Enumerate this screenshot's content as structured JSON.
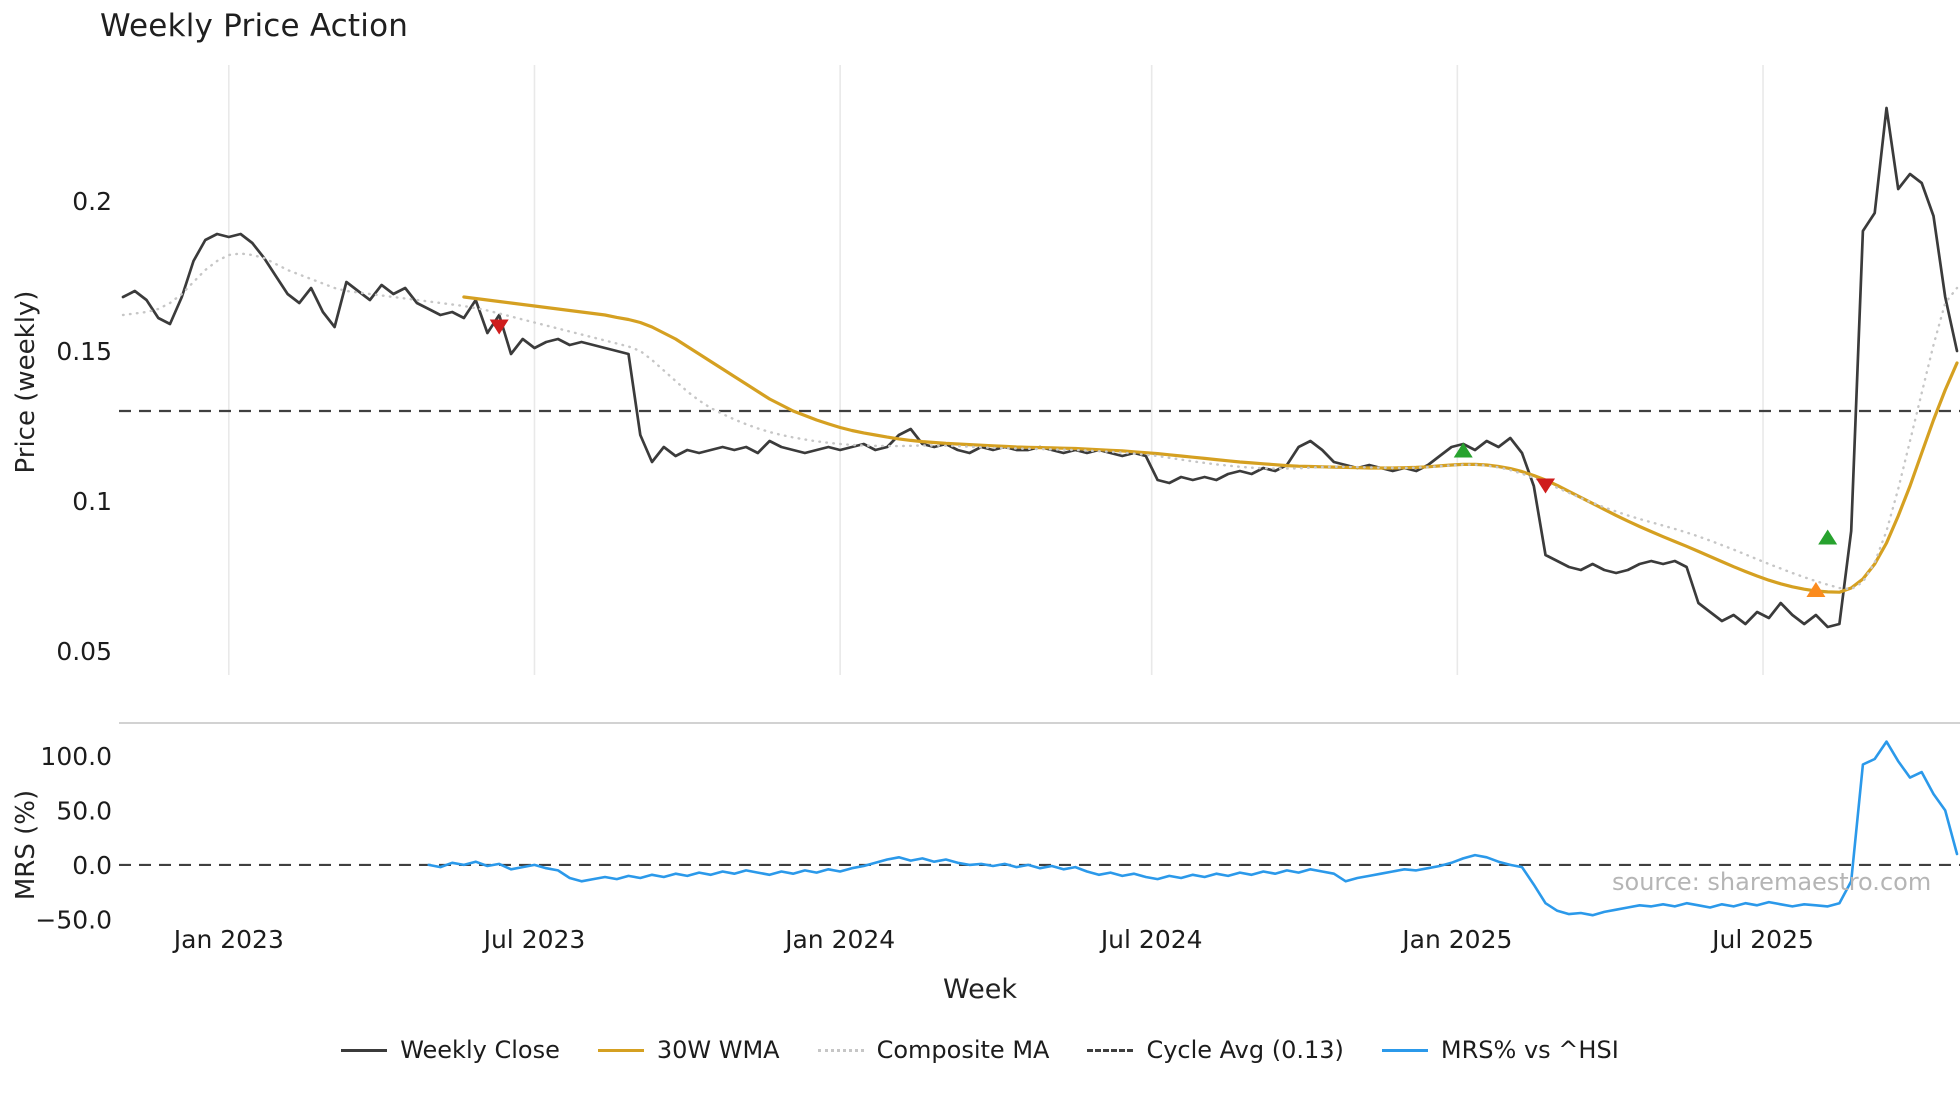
{
  "title": "Weekly Price Action",
  "source_note": "source: sharemaestro.com",
  "axes": {
    "price_label": "Price (weekly)",
    "mrs_label": "MRS (%)",
    "x_label": "Week"
  },
  "colors": {
    "weekly_close": "#3b3b3b",
    "wma": "#d5a021",
    "composite": "#c6c6c6",
    "cycle_avg": "#3f3f3f",
    "mrs": "#2b99ea",
    "grid": "#e9e9e9",
    "panel_border": "#cccccc",
    "sell_marker": "#cf1d1d",
    "buy_marker": "#27a22e",
    "cycle_low_marker": "#fb8b1e"
  },
  "legend": [
    {
      "label": "Weekly Close",
      "color": "#3b3b3b",
      "style": "solid"
    },
    {
      "label": "30W WMA",
      "color": "#d5a021",
      "style": "solid"
    },
    {
      "label": "Composite MA",
      "color": "#c6c6c6",
      "style": "dotted"
    },
    {
      "label": "Cycle Avg (0.13)",
      "color": "#3f3f3f",
      "style": "dashed"
    },
    {
      "label": "MRS% vs ^HSI",
      "color": "#2b99ea",
      "style": "solid"
    }
  ],
  "chart_data": {
    "type": "line",
    "title": "Weekly Price Action",
    "xlabel": "Week",
    "x_unit": "weekly index from late Nov 2022",
    "x_ticks": [
      {
        "index": 9,
        "label": "Jan 2023"
      },
      {
        "index": 35,
        "label": "Jul 2023"
      },
      {
        "index": 61,
        "label": "Jan 2024"
      },
      {
        "index": 87.5,
        "label": "Jul 2024"
      },
      {
        "index": 113.5,
        "label": "Jan 2025"
      },
      {
        "index": 139.5,
        "label": "Jul 2025"
      }
    ],
    "panels": [
      {
        "name": "price",
        "ylabel": "Price (weekly)",
        "ylim": [
          0.042,
          0.24
        ],
        "grid": "vertical",
        "yticks": [
          {
            "value": 0.2,
            "label": "0.2"
          },
          {
            "value": 0.15,
            "label": "0.15"
          },
          {
            "value": 0.1,
            "label": "0.1"
          },
          {
            "value": 0.05,
            "label": "0.05"
          }
        ],
        "hline": {
          "value": 0.13,
          "label": "Cycle Avg (0.13)",
          "style": "dashed"
        }
      },
      {
        "name": "mrs",
        "ylabel": "MRS (%)",
        "ylim": [
          -55,
          130
        ],
        "grid": "none",
        "yticks": [
          {
            "value": 100,
            "label": "100.0"
          },
          {
            "value": 50,
            "label": "50.0"
          },
          {
            "value": 0,
            "label": "0.0"
          },
          {
            "value": -50,
            "label": "−50.0"
          }
        ],
        "hline": {
          "value": 0,
          "label": "zero line",
          "style": "dashed"
        }
      }
    ],
    "series": [
      {
        "name": "Weekly Close",
        "panel": "price",
        "color": "#3b3b3b",
        "width": 2.7,
        "dash": null,
        "start_index": 0,
        "values": [
          0.168,
          0.17,
          0.167,
          0.161,
          0.159,
          0.168,
          0.18,
          0.187,
          0.189,
          0.188,
          0.189,
          0.186,
          0.181,
          0.175,
          0.169,
          0.166,
          0.171,
          0.163,
          0.158,
          0.173,
          0.17,
          0.167,
          0.172,
          0.169,
          0.171,
          0.166,
          0.164,
          0.162,
          0.163,
          0.161,
          0.167,
          0.156,
          0.162,
          0.149,
          0.154,
          0.151,
          0.153,
          0.154,
          0.152,
          0.153,
          0.152,
          0.151,
          0.15,
          0.149,
          0.122,
          0.113,
          0.118,
          0.115,
          0.117,
          0.116,
          0.117,
          0.118,
          0.117,
          0.118,
          0.116,
          0.12,
          0.118,
          0.117,
          0.116,
          0.117,
          0.118,
          0.117,
          0.118,
          0.119,
          0.117,
          0.118,
          0.122,
          0.124,
          0.119,
          0.118,
          0.119,
          0.117,
          0.116,
          0.118,
          0.117,
          0.118,
          0.117,
          0.117,
          0.118,
          0.117,
          0.116,
          0.117,
          0.116,
          0.117,
          0.116,
          0.115,
          0.116,
          0.115,
          0.107,
          0.106,
          0.108,
          0.107,
          0.108,
          0.107,
          0.109,
          0.11,
          0.109,
          0.111,
          0.11,
          0.112,
          0.118,
          0.12,
          0.117,
          0.113,
          0.112,
          0.111,
          0.112,
          0.111,
          0.11,
          0.111,
          0.11,
          0.112,
          0.115,
          0.118,
          0.119,
          0.117,
          0.12,
          0.118,
          0.121,
          0.116,
          0.105,
          0.082,
          0.08,
          0.078,
          0.077,
          0.079,
          0.077,
          0.076,
          0.077,
          0.079,
          0.08,
          0.079,
          0.08,
          0.078,
          0.066,
          0.063,
          0.06,
          0.062,
          0.059,
          0.063,
          0.061,
          0.066,
          0.062,
          0.059,
          0.062,
          0.058,
          0.059,
          0.09,
          0.19,
          0.196,
          0.231,
          0.204,
          0.209,
          0.206,
          0.195,
          0.168,
          0.15
        ]
      },
      {
        "name": "30W WMA",
        "panel": "price",
        "color": "#d5a021",
        "width": 3.2,
        "dash": null,
        "start_index": 29,
        "values": [
          0.168,
          0.1675,
          0.167,
          0.1665,
          0.166,
          0.1655,
          0.165,
          0.1645,
          0.164,
          0.1635,
          0.163,
          0.1625,
          0.162,
          0.1612,
          0.1605,
          0.1595,
          0.158,
          0.156,
          0.154,
          0.1515,
          0.149,
          0.1465,
          0.144,
          0.1415,
          0.139,
          0.1365,
          0.134,
          0.132,
          0.13,
          0.1285,
          0.127,
          0.1257,
          0.1245,
          0.1235,
          0.1227,
          0.122,
          0.1213,
          0.1207,
          0.1202,
          0.1198,
          0.1195,
          0.1192,
          0.119,
          0.1188,
          0.1186,
          0.1184,
          0.1182,
          0.118,
          0.1179,
          0.1178,
          0.1177,
          0.1176,
          0.1175,
          0.1173,
          0.1171,
          0.1169,
          0.1167,
          0.1164,
          0.1161,
          0.1158,
          0.1154,
          0.115,
          0.1146,
          0.1142,
          0.1138,
          0.1134,
          0.113,
          0.1127,
          0.1124,
          0.1121,
          0.1118,
          0.1116,
          0.1115,
          0.1114,
          0.1113,
          0.1112,
          0.1111,
          0.111,
          0.111,
          0.111,
          0.1111,
          0.1112,
          0.1114,
          0.1117,
          0.112,
          0.1122,
          0.1122,
          0.112,
          0.1115,
          0.1108,
          0.1098,
          0.1085,
          0.107,
          0.1052,
          0.1032,
          0.1012,
          0.0992,
          0.0972,
          0.0952,
          0.0933,
          0.0915,
          0.0898,
          0.0881,
          0.0865,
          0.0849,
          0.0832,
          0.0815,
          0.0798,
          0.0781,
          0.0765,
          0.075,
          0.0736,
          0.0724,
          0.0714,
          0.0706,
          0.07,
          0.0697,
          0.0696,
          0.071,
          0.074,
          0.079,
          0.086,
          0.095,
          0.105,
          0.116,
          0.127,
          0.137,
          0.146
        ]
      },
      {
        "name": "Composite MA",
        "panel": "price",
        "color": "#c6c6c6",
        "width": 2.4,
        "dash": "0.6 6.4",
        "start_index": 0,
        "values": [
          0.162,
          0.1625,
          0.163,
          0.164,
          0.166,
          0.169,
          0.173,
          0.177,
          0.18,
          0.182,
          0.1825,
          0.182,
          0.181,
          0.179,
          0.177,
          0.1755,
          0.174,
          0.1725,
          0.171,
          0.17,
          0.1695,
          0.169,
          0.1685,
          0.168,
          0.1675,
          0.167,
          0.1665,
          0.166,
          0.1655,
          0.165,
          0.1643,
          0.1635,
          0.1625,
          0.1615,
          0.1605,
          0.1595,
          0.1585,
          0.1575,
          0.1565,
          0.1555,
          0.1545,
          0.1535,
          0.1525,
          0.1515,
          0.15,
          0.147,
          0.1435,
          0.14,
          0.1365,
          0.1335,
          0.131,
          0.129,
          0.1272,
          0.1256,
          0.1242,
          0.123,
          0.122,
          0.1212,
          0.1205,
          0.1199,
          0.1194,
          0.119,
          0.1187,
          0.1185,
          0.1184,
          0.1183,
          0.1183,
          0.1184,
          0.1185,
          0.1185,
          0.1184,
          0.1183,
          0.1181,
          0.1179,
          0.1177,
          0.1176,
          0.1175,
          0.1174,
          0.1173,
          0.1172,
          0.1171,
          0.117,
          0.1168,
          0.1166,
          0.1164,
          0.1161,
          0.1158,
          0.1154,
          0.115,
          0.1144,
          0.1138,
          0.1132,
          0.1127,
          0.1122,
          0.1118,
          0.1114,
          0.1111,
          0.1109,
          0.1108,
          0.1108,
          0.1109,
          0.1111,
          0.1113,
          0.1114,
          0.1114,
          0.1113,
          0.1112,
          0.1111,
          0.111,
          0.111,
          0.1111,
          0.1113,
          0.1116,
          0.1119,
          0.1121,
          0.1121,
          0.1118,
          0.1112,
          0.1103,
          0.1091,
          0.1077,
          0.1061,
          0.1044,
          0.1027,
          0.101,
          0.0994,
          0.0979,
          0.0965,
          0.0952,
          0.094,
          0.0929,
          0.0918,
          0.0907,
          0.0895,
          0.0882,
          0.0868,
          0.0853,
          0.0838,
          0.0822,
          0.0806,
          0.079,
          0.0775,
          0.076,
          0.0746,
          0.0733,
          0.0721,
          0.071,
          0.0706,
          0.073,
          0.0795,
          0.09,
          0.104,
          0.12,
          0.136,
          0.152,
          0.166,
          0.171
        ]
      },
      {
        "name": "MRS% vs ^HSI",
        "panel": "mrs",
        "color": "#2b99ea",
        "width": 2.6,
        "dash": null,
        "start_index": 26,
        "values": [
          0,
          -2,
          2,
          0,
          3,
          -1,
          1,
          -4,
          -2,
          0,
          -3,
          -5,
          -12,
          -15,
          -13,
          -11,
          -13,
          -10,
          -12,
          -9,
          -11,
          -8,
          -10,
          -7,
          -9,
          -6,
          -8,
          -5,
          -7,
          -9,
          -6,
          -8,
          -5,
          -7,
          -4,
          -6,
          -3,
          -1,
          2,
          5,
          7,
          4,
          6,
          3,
          5,
          2,
          0,
          1,
          -1,
          1,
          -2,
          0,
          -3,
          -1,
          -4,
          -2,
          -6,
          -9,
          -7,
          -10,
          -8,
          -11,
          -13,
          -10,
          -12,
          -9,
          -11,
          -8,
          -10,
          -7,
          -9,
          -6,
          -8,
          -5,
          -7,
          -4,
          -6,
          -8,
          -15,
          -12,
          -10,
          -8,
          -6,
          -4,
          -5,
          -3,
          -1,
          2,
          6,
          9,
          7,
          3,
          0,
          -2,
          -18,
          -35,
          -42,
          -45,
          -44,
          -46,
          -43,
          -41,
          -39,
          -37,
          -38,
          -36,
          -38,
          -35,
          -37,
          -39,
          -36,
          -38,
          -35,
          -37,
          -34,
          -36,
          -38,
          -36,
          -37,
          -38,
          -35,
          -15,
          92,
          97,
          113,
          95,
          80,
          85,
          65,
          50,
          10
        ]
      }
    ],
    "markers": [
      {
        "index": 32,
        "value": 0.158,
        "shape": "triangle-down",
        "color": "#cf1d1d",
        "name": "sell-signal"
      },
      {
        "index": 114,
        "value": 0.117,
        "shape": "triangle-up",
        "color": "#27a22e",
        "name": "buy-signal"
      },
      {
        "index": 121,
        "value": 0.105,
        "shape": "triangle-down",
        "color": "#cf1d1d",
        "name": "sell-signal"
      },
      {
        "index": 144,
        "value": 0.0705,
        "shape": "triangle-up",
        "color": "#fb8b1e",
        "name": "cycle-low-signal"
      },
      {
        "index": 145,
        "value": 0.088,
        "shape": "triangle-up",
        "color": "#27a22e",
        "name": "buy-signal"
      }
    ]
  }
}
